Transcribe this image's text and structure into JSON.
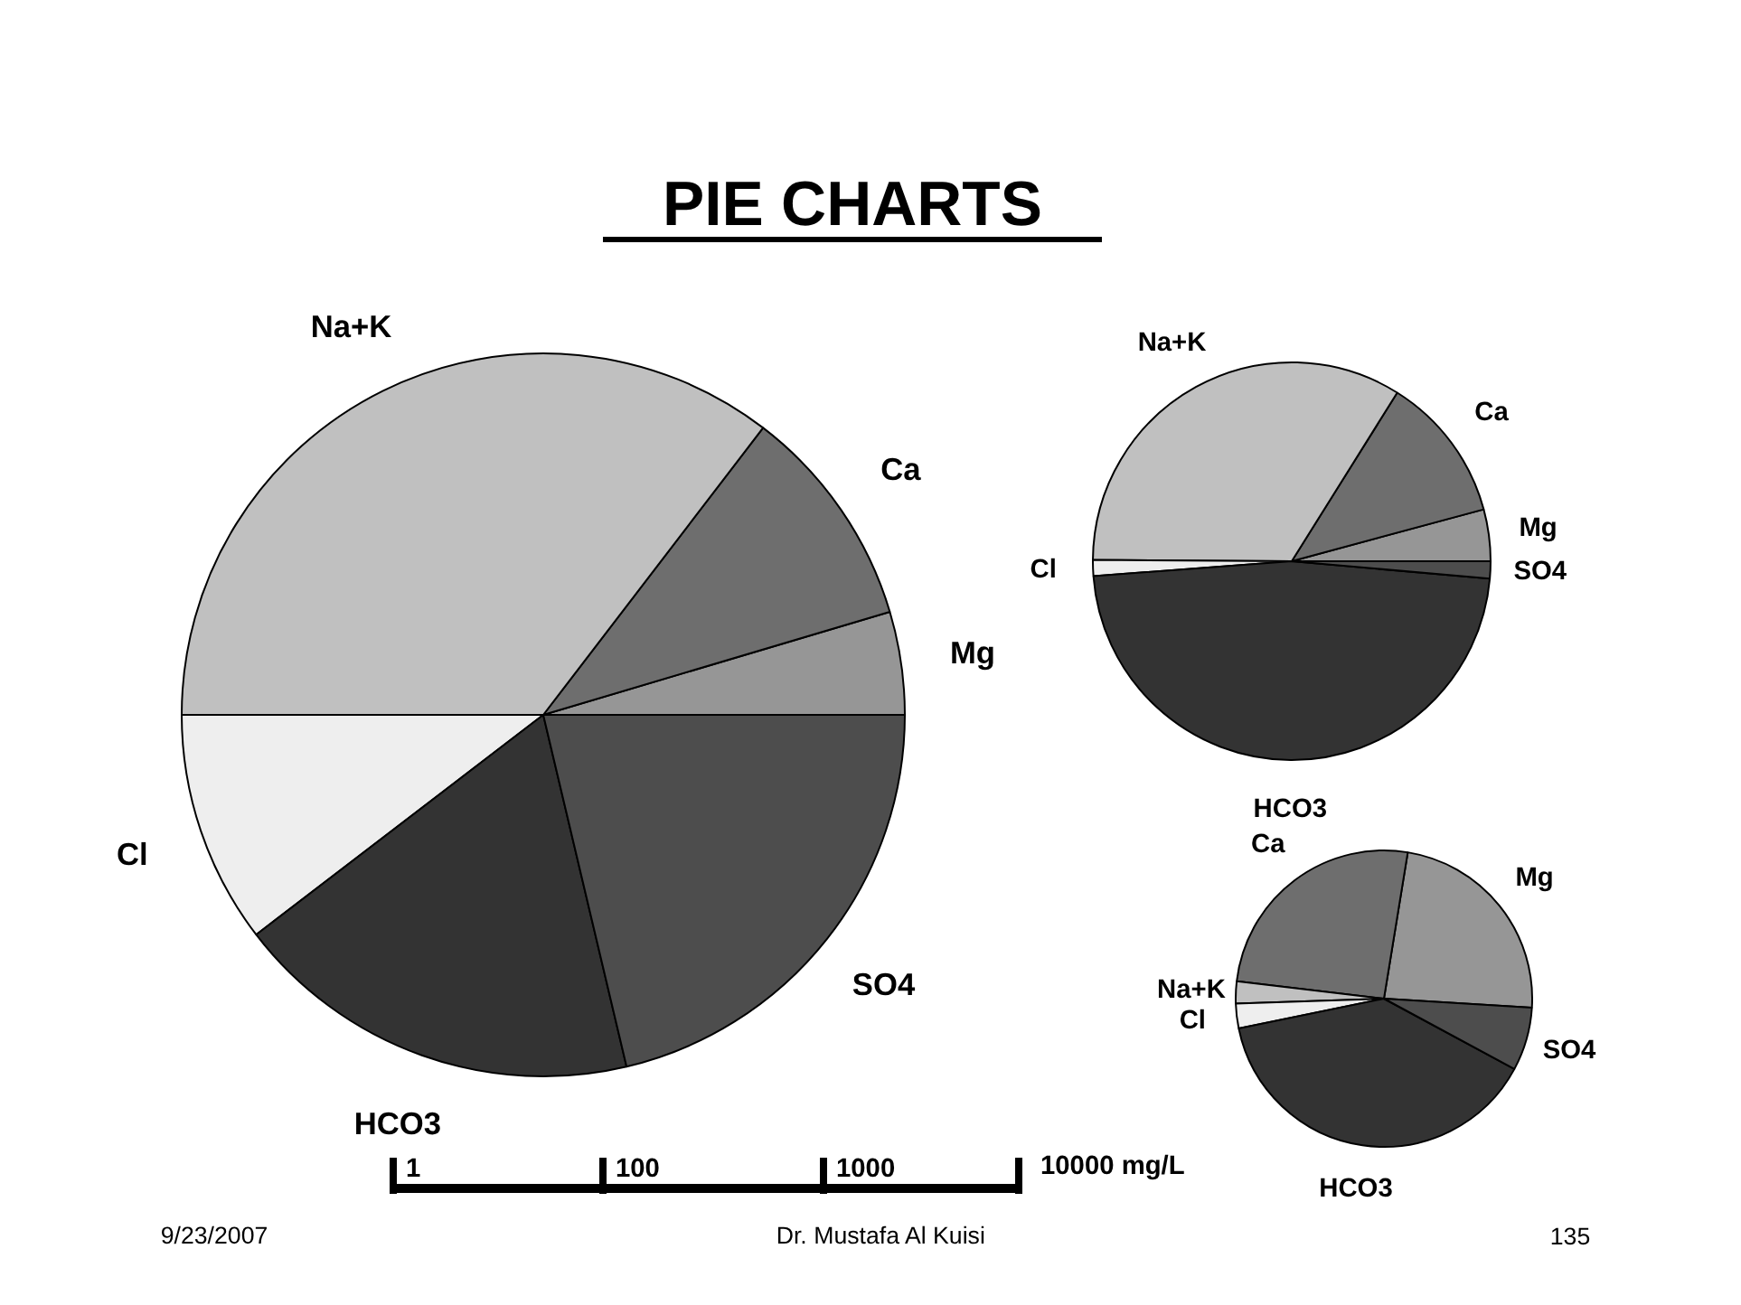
{
  "chart_data": [
    {
      "type": "pie",
      "title": "PIE CHARTS",
      "categories": [
        "Mg",
        "Ca",
        "Na+K",
        "Cl",
        "HCO3",
        "SO4"
      ],
      "values": [
        4.6,
        10.0,
        35.4,
        10.4,
        18.3,
        21.3
      ],
      "colors": [
        "#969696",
        "#6e6e6e",
        "#c0c0c0",
        "#eeeeee",
        "#333333",
        "#4d4d4d"
      ],
      "annotations": [
        "1",
        "100",
        "1000",
        "10000 mg/L",
        "9/23/2007",
        "Dr. Mustafa Al Kuisi",
        "135"
      ]
    },
    {
      "type": "pie",
      "categories": [
        "Mg",
        "Ca",
        "Na+K",
        "Cl",
        "HCO3",
        "SO4"
      ],
      "values": [
        4.2,
        11.9,
        33.8,
        1.3,
        47.4,
        1.4
      ],
      "colors": [
        "#969696",
        "#6e6e6e",
        "#c0c0c0",
        "#eeeeee",
        "#333333",
        "#4d4d4d"
      ]
    },
    {
      "type": "pie",
      "categories": [
        "Mg",
        "Ca",
        "Na+K",
        "Cl",
        "HCO3",
        "SO4"
      ],
      "values": [
        23.4,
        25.7,
        2.4,
        2.7,
        38.9,
        6.9
      ],
      "colors": [
        "#969696",
        "#6e6e6e",
        "#c0c0c0",
        "#eeeeee",
        "#333333",
        "#4d4d4d"
      ]
    }
  ]
}
